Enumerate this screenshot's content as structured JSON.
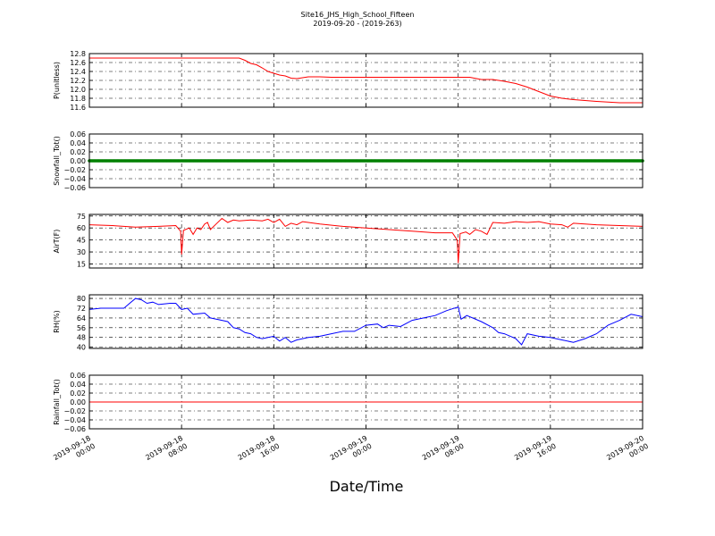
{
  "figure": {
    "title": "Site16_JHS_High_School_Fifteen",
    "subtitle": "2019-09-20 - (2019-263)",
    "xlabel": "Date/Time"
  },
  "chart_data": [
    {
      "type": "line",
      "ylabel": "P(unitless)",
      "ylim": [
        11.6,
        12.8
      ],
      "yticks": [
        "12.8",
        "12.6",
        "12.4",
        "12.2",
        "12.0",
        "11.8",
        "11.6"
      ],
      "xlim": [
        "2019-09-18 00:00",
        "2019-09-20 00:00"
      ],
      "grid": true,
      "series": [
        {
          "color": "#ff0000",
          "points": [
            [
              "2019-09-18 00:00",
              12.7
            ],
            [
              "2019-09-18 13:00",
              12.7
            ],
            [
              "2019-09-18 13:30",
              12.65
            ],
            [
              "2019-09-18 14:00",
              12.58
            ],
            [
              "2019-09-18 14:30",
              12.55
            ],
            [
              "2019-09-18 15:00",
              12.48
            ],
            [
              "2019-09-18 15:30",
              12.4
            ],
            [
              "2019-09-18 16:00",
              12.36
            ],
            [
              "2019-09-18 16:30",
              12.32
            ],
            [
              "2019-09-18 17:00",
              12.3
            ],
            [
              "2019-09-18 17:30",
              12.25
            ],
            [
              "2019-09-18 18:00",
              12.24
            ],
            [
              "2019-09-18 19:00",
              12.28
            ],
            [
              "2019-09-18 20:00",
              12.28
            ],
            [
              "2019-09-18 21:00",
              12.27
            ],
            [
              "2019-09-19 00:00",
              12.27
            ],
            [
              "2019-09-19 06:00",
              12.27
            ],
            [
              "2019-09-19 09:00",
              12.27
            ],
            [
              "2019-09-19 10:00",
              12.22
            ],
            [
              "2019-09-19 11:00",
              12.22
            ],
            [
              "2019-09-19 12:00",
              12.18
            ],
            [
              "2019-09-19 13:00",
              12.13
            ],
            [
              "2019-09-19 14:00",
              12.05
            ],
            [
              "2019-09-19 15:00",
              11.95
            ],
            [
              "2019-09-19 16:00",
              11.85
            ],
            [
              "2019-09-19 17:00",
              11.8
            ],
            [
              "2019-09-19 18:00",
              11.77
            ],
            [
              "2019-09-19 19:00",
              11.75
            ],
            [
              "2019-09-19 20:00",
              11.73
            ],
            [
              "2019-09-19 22:00",
              11.7
            ],
            [
              "2019-09-20 00:00",
              11.7
            ]
          ]
        }
      ]
    },
    {
      "type": "scatter",
      "ylabel": "Snowfall_Tot()",
      "ylim": [
        -0.06,
        0.06
      ],
      "yticks": [
        "0.06",
        "0.04",
        "0.02",
        "0.00",
        "−0.02",
        "−0.04",
        "−0.06"
      ],
      "grid": true,
      "series": [
        {
          "color": "#008000",
          "constant": 0.0,
          "marker": "dot",
          "interval": "5min"
        }
      ]
    },
    {
      "type": "line",
      "ylabel": "AirT(F)",
      "ylim": [
        10,
        77
      ],
      "yticks": [
        "75",
        "60",
        "45",
        "30",
        "15"
      ],
      "grid": true,
      "series": [
        {
          "color": "#ff0000",
          "points": [
            [
              "2019-09-18 00:00",
              64
            ],
            [
              "2019-09-18 02:00",
              63
            ],
            [
              "2019-09-18 04:00",
              61
            ],
            [
              "2019-09-18 06:00",
              62
            ],
            [
              "2019-09-18 07:30",
              63
            ],
            [
              "2019-09-18 07:55",
              56
            ],
            [
              "2019-09-18 08:00",
              27
            ],
            [
              "2019-09-18 08:10",
              57
            ],
            [
              "2019-09-18 08:40",
              60
            ],
            [
              "2019-09-18 09:00",
              52
            ],
            [
              "2019-09-18 09:20",
              60
            ],
            [
              "2019-09-18 09:40",
              58
            ],
            [
              "2019-09-18 10:00",
              65
            ],
            [
              "2019-09-18 10:15",
              67
            ],
            [
              "2019-09-18 10:30",
              58
            ],
            [
              "2019-09-18 11:00",
              65
            ],
            [
              "2019-09-18 11:30",
              72
            ],
            [
              "2019-09-18 12:00",
              67
            ],
            [
              "2019-09-18 12:30",
              70
            ],
            [
              "2019-09-18 13:00",
              69
            ],
            [
              "2019-09-18 14:00",
              70
            ],
            [
              "2019-09-18 15:00",
              69
            ],
            [
              "2019-09-18 15:30",
              71
            ],
            [
              "2019-09-18 16:00",
              67
            ],
            [
              "2019-09-18 16:30",
              71
            ],
            [
              "2019-09-18 17:00",
              62
            ],
            [
              "2019-09-18 17:30",
              66
            ],
            [
              "2019-09-18 18:00",
              64
            ],
            [
              "2019-09-18 18:30",
              68
            ],
            [
              "2019-09-18 20:00",
              65
            ],
            [
              "2019-09-18 22:00",
              62
            ],
            [
              "2019-09-19 00:00",
              60
            ],
            [
              "2019-09-19 02:00",
              58
            ],
            [
              "2019-09-19 04:00",
              56
            ],
            [
              "2019-09-19 06:00",
              54
            ],
            [
              "2019-09-19 07:30",
              54
            ],
            [
              "2019-09-19 07:55",
              45
            ],
            [
              "2019-09-19 08:00",
              16
            ],
            [
              "2019-09-19 08:10",
              53
            ],
            [
              "2019-09-19 08:40",
              55
            ],
            [
              "2019-09-19 09:00",
              52
            ],
            [
              "2019-09-19 09:30",
              58
            ],
            [
              "2019-09-19 10:00",
              56
            ],
            [
              "2019-09-19 10:30",
              52
            ],
            [
              "2019-09-19 11:00",
              67
            ],
            [
              "2019-09-19 12:00",
              66
            ],
            [
              "2019-09-19 13:00",
              68
            ],
            [
              "2019-09-19 14:00",
              67
            ],
            [
              "2019-09-19 15:00",
              68
            ],
            [
              "2019-09-19 16:00",
              65
            ],
            [
              "2019-09-19 17:00",
              64
            ],
            [
              "2019-09-19 17:30",
              61
            ],
            [
              "2019-09-19 18:00",
              66
            ],
            [
              "2019-09-19 19:00",
              65
            ],
            [
              "2019-09-19 20:00",
              64
            ],
            [
              "2019-09-19 22:00",
              63
            ],
            [
              "2019-09-20 00:00",
              62
            ]
          ]
        }
      ]
    },
    {
      "type": "line",
      "ylabel": "RH(%)",
      "ylim": [
        39,
        83
      ],
      "yticks": [
        "80",
        "72",
        "64",
        "56",
        "48",
        "40"
      ],
      "grid": true,
      "series": [
        {
          "color": "#0000ff",
          "points": [
            [
              "2019-09-18 00:00",
              71
            ],
            [
              "2019-09-18 01:00",
              72
            ],
            [
              "2019-09-18 02:00",
              72
            ],
            [
              "2019-09-18 03:00",
              72
            ],
            [
              "2019-09-18 03:30",
              76
            ],
            [
              "2019-09-18 04:00",
              80
            ],
            [
              "2019-09-18 04:30",
              79
            ],
            [
              "2019-09-18 05:00",
              76
            ],
            [
              "2019-09-18 05:30",
              77
            ],
            [
              "2019-09-18 06:00",
              75
            ],
            [
              "2019-09-18 07:00",
              76
            ],
            [
              "2019-09-18 07:30",
              76
            ],
            [
              "2019-09-18 08:00",
              71
            ],
            [
              "2019-09-18 08:30",
              72
            ],
            [
              "2019-09-18 09:00",
              67
            ],
            [
              "2019-09-18 10:00",
              68
            ],
            [
              "2019-09-18 10:30",
              64
            ],
            [
              "2019-09-18 11:00",
              63
            ],
            [
              "2019-09-18 12:00",
              61
            ],
            [
              "2019-09-18 12:30",
              56
            ],
            [
              "2019-09-18 13:00",
              55
            ],
            [
              "2019-09-18 13:30",
              52
            ],
            [
              "2019-09-18 14:00",
              51
            ],
            [
              "2019-09-18 14:30",
              48
            ],
            [
              "2019-09-18 15:00",
              47
            ],
            [
              "2019-09-18 16:00",
              49
            ],
            [
              "2019-09-18 16:30",
              45
            ],
            [
              "2019-09-18 17:00",
              48
            ],
            [
              "2019-09-18 17:30",
              44
            ],
            [
              "2019-09-18 18:00",
              46
            ],
            [
              "2019-09-18 19:00",
              48
            ],
            [
              "2019-09-18 20:00",
              49
            ],
            [
              "2019-09-18 21:00",
              51
            ],
            [
              "2019-09-18 22:00",
              53
            ],
            [
              "2019-09-18 23:00",
              53
            ],
            [
              "2019-09-19 00:00",
              58
            ],
            [
              "2019-09-19 01:00",
              59
            ],
            [
              "2019-09-19 01:30",
              56
            ],
            [
              "2019-09-19 02:00",
              58
            ],
            [
              "2019-09-19 03:00",
              57
            ],
            [
              "2019-09-19 04:00",
              62
            ],
            [
              "2019-09-19 05:00",
              64
            ],
            [
              "2019-09-19 06:00",
              66
            ],
            [
              "2019-09-19 07:00",
              70
            ],
            [
              "2019-09-19 08:00",
              73
            ],
            [
              "2019-09-19 08:15",
              63
            ],
            [
              "2019-09-19 08:45",
              66
            ],
            [
              "2019-09-19 10:00",
              61
            ],
            [
              "2019-09-19 11:00",
              56
            ],
            [
              "2019-09-19 11:30",
              52
            ],
            [
              "2019-09-19 12:00",
              51
            ],
            [
              "2019-09-19 13:00",
              47
            ],
            [
              "2019-09-19 13:30",
              42
            ],
            [
              "2019-09-19 14:00",
              51
            ],
            [
              "2019-09-19 15:00",
              49
            ],
            [
              "2019-09-19 16:00",
              48
            ],
            [
              "2019-09-19 17:00",
              46
            ],
            [
              "2019-09-19 18:00",
              44
            ],
            [
              "2019-09-19 19:00",
              47
            ],
            [
              "2019-09-19 20:00",
              51
            ],
            [
              "2019-09-19 21:00",
              58
            ],
            [
              "2019-09-19 22:00",
              62
            ],
            [
              "2019-09-19 23:00",
              67
            ],
            [
              "2019-09-20 00:00",
              65
            ]
          ]
        }
      ]
    },
    {
      "type": "line",
      "ylabel": "Rainfall_Tot()",
      "ylim": [
        -0.06,
        0.06
      ],
      "yticks": [
        "0.06",
        "0.04",
        "0.02",
        "0.00",
        "−0.02",
        "−0.04",
        "−0.06"
      ],
      "grid": true,
      "series": [
        {
          "color": "#ff0000",
          "constant": 0.0
        }
      ]
    }
  ],
  "x_axis": {
    "ticks": [
      {
        "at": "2019-09-18 00:00",
        "label": [
          "2019-09-18",
          "00:00"
        ]
      },
      {
        "at": "2019-09-18 08:00",
        "label": [
          "2019-09-18",
          "08:00"
        ]
      },
      {
        "at": "2019-09-18 16:00",
        "label": [
          "2019-09-18",
          "16:00"
        ]
      },
      {
        "at": "2019-09-19 00:00",
        "label": [
          "2019-09-19",
          "00:00"
        ]
      },
      {
        "at": "2019-09-19 08:00",
        "label": [
          "2019-09-19",
          "08:00"
        ]
      },
      {
        "at": "2019-09-19 16:00",
        "label": [
          "2019-09-19",
          "16:00"
        ]
      },
      {
        "at": "2019-09-20 00:00",
        "label": [
          "2019-09-20",
          "00:00"
        ]
      }
    ]
  }
}
